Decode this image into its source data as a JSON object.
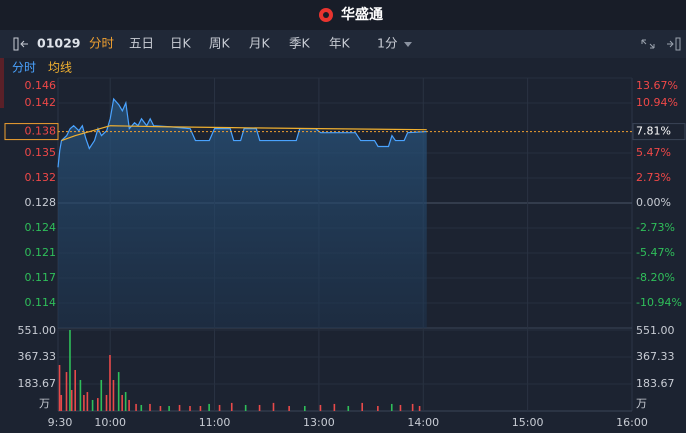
{
  "header": {
    "brand": "华盛通"
  },
  "toolbar": {
    "symbol": "01029",
    "tabs": [
      "分时",
      "五日",
      "日K",
      "周K",
      "月K",
      "季K",
      "年K"
    ],
    "active_tab": 0,
    "interval": "1分"
  },
  "chart_data": {
    "type": "line",
    "xlim": [
      0,
      330
    ],
    "xticks": [
      {
        "value": 0,
        "label": "9:30"
      },
      {
        "value": 30,
        "label": "10:00"
      },
      {
        "value": 90,
        "label": "11:00"
      },
      {
        "value": 150,
        "label": "13:00"
      },
      {
        "value": 210,
        "label": "14:00"
      },
      {
        "value": 270,
        "label": "15:00"
      },
      {
        "value": 330,
        "label": "16:00"
      }
    ],
    "ylim": [
      -13.67,
      13.67
    ],
    "yticks": [
      {
        "value": 13.67,
        "label": "13.67%"
      },
      {
        "value": 10.94,
        "label": "10.94%"
      },
      {
        "value": 5.47,
        "label": "5.47%"
      },
      {
        "value": 2.73,
        "label": "2.73%"
      },
      {
        "value": 0,
        "label": "0.00%"
      },
      {
        "value": -2.73,
        "label": "-2.73%"
      },
      {
        "value": -5.47,
        "label": "-5.47%"
      },
      {
        "value": -8.2,
        "label": "-8.20%"
      },
      {
        "value": -10.94,
        "label": "-10.94%"
      }
    ],
    "price_labels": [
      "0.146",
      "0.142",
      "0.135",
      "0.132",
      "0.128",
      "0.124",
      "0.121",
      "0.117",
      "0.114"
    ],
    "current": {
      "value": 7.81,
      "label": "7.81%",
      "price": "0.138"
    },
    "series": [
      {
        "name": "分时",
        "color": "#4aa3ff",
        "x": [
          0,
          1,
          2,
          5,
          7,
          9,
          12,
          14,
          16,
          18,
          21,
          23,
          25,
          28,
          30,
          32,
          35,
          37,
          39,
          41,
          44,
          46,
          48,
          51,
          53,
          55,
          64,
          76,
          79,
          87,
          90,
          99,
          101,
          105,
          107,
          114,
          116,
          137,
          139,
          148,
          151,
          171,
          174,
          182,
          184,
          190,
          192,
          194,
          199,
          201,
          212
        ],
        "values": [
          3.9,
          5.74,
          6.83,
          7.37,
          8.13,
          8.45,
          7.91,
          8.45,
          7.04,
          5.96,
          6.83,
          8.13,
          7.37,
          7.91,
          9.21,
          11.38,
          10.73,
          10.08,
          10.94,
          8.13,
          8.78,
          8.45,
          9.21,
          8.45,
          9.21,
          8.45,
          8.34,
          8.13,
          6.83,
          6.83,
          8.13,
          8.13,
          6.83,
          6.83,
          8.13,
          8.13,
          6.83,
          6.83,
          8.13,
          8.13,
          7.69,
          7.69,
          6.83,
          6.83,
          6.18,
          6.18,
          7.37,
          6.83,
          6.83,
          7.69,
          7.81
        ]
      },
      {
        "name": "均线",
        "color": "#f0b030",
        "x": [
          2,
          10,
          20,
          30,
          60,
          100,
          150,
          212
        ],
        "values": [
          6.83,
          7.37,
          7.91,
          8.45,
          8.34,
          8.24,
          8.13,
          8.02
        ]
      }
    ],
    "volume": {
      "ylim": [
        0,
        551
      ],
      "yticks": [
        {
          "value": 551,
          "label": "551.00"
        },
        {
          "value": 367.33,
          "label": "367.33"
        },
        {
          "value": 183.67,
          "label": "183.67"
        }
      ],
      "unit": "万",
      "x": [
        1,
        2,
        5,
        7,
        8,
        10,
        13,
        15,
        17,
        20,
        23,
        25,
        28,
        30,
        32,
        35,
        37,
        39,
        41,
        45,
        48,
        53,
        59,
        64,
        70,
        76,
        82,
        87,
        93,
        100,
        108,
        116,
        124,
        133,
        142,
        151,
        159,
        167,
        175,
        184,
        192,
        197,
        204,
        208
      ],
      "values": [
        313,
        109,
        265,
        551,
        143,
        279,
        211,
        109,
        129,
        75,
        88,
        211,
        109,
        381,
        211,
        265,
        109,
        129,
        75,
        48,
        41,
        48,
        34,
        34,
        41,
        34,
        34,
        48,
        41,
        55,
        41,
        41,
        55,
        34,
        34,
        41,
        48,
        34,
        55,
        34,
        48,
        41,
        48,
        34
      ],
      "colors": [
        "#e84a4a",
        "#e84a4a",
        "#e84a4a",
        "#2fbf5a",
        "#e84a4a",
        "#e84a4a",
        "#2fbf5a",
        "#e84a4a",
        "#e84a4a",
        "#2fbf5a",
        "#e84a4a",
        "#2fbf5a",
        "#e84a4a",
        "#e84a4a",
        "#e84a4a",
        "#2fbf5a",
        "#e84a4a",
        "#2fbf5a",
        "#e84a4a",
        "#e84a4a",
        "#2fbf5a",
        "#e84a4a",
        "#e84a4a",
        "#2fbf5a",
        "#e84a4a",
        "#e84a4a",
        "#e84a4a",
        "#2fbf5a",
        "#e84a4a",
        "#e84a4a",
        "#2fbf5a",
        "#e84a4a",
        "#e84a4a",
        "#e84a4a",
        "#2fbf5a",
        "#e84a4a",
        "#e84a4a",
        "#2fbf5a",
        "#e84a4a",
        "#e84a4a",
        "#2fbf5a",
        "#e84a4a",
        "#e84a4a",
        "#e84a4a"
      ]
    }
  }
}
